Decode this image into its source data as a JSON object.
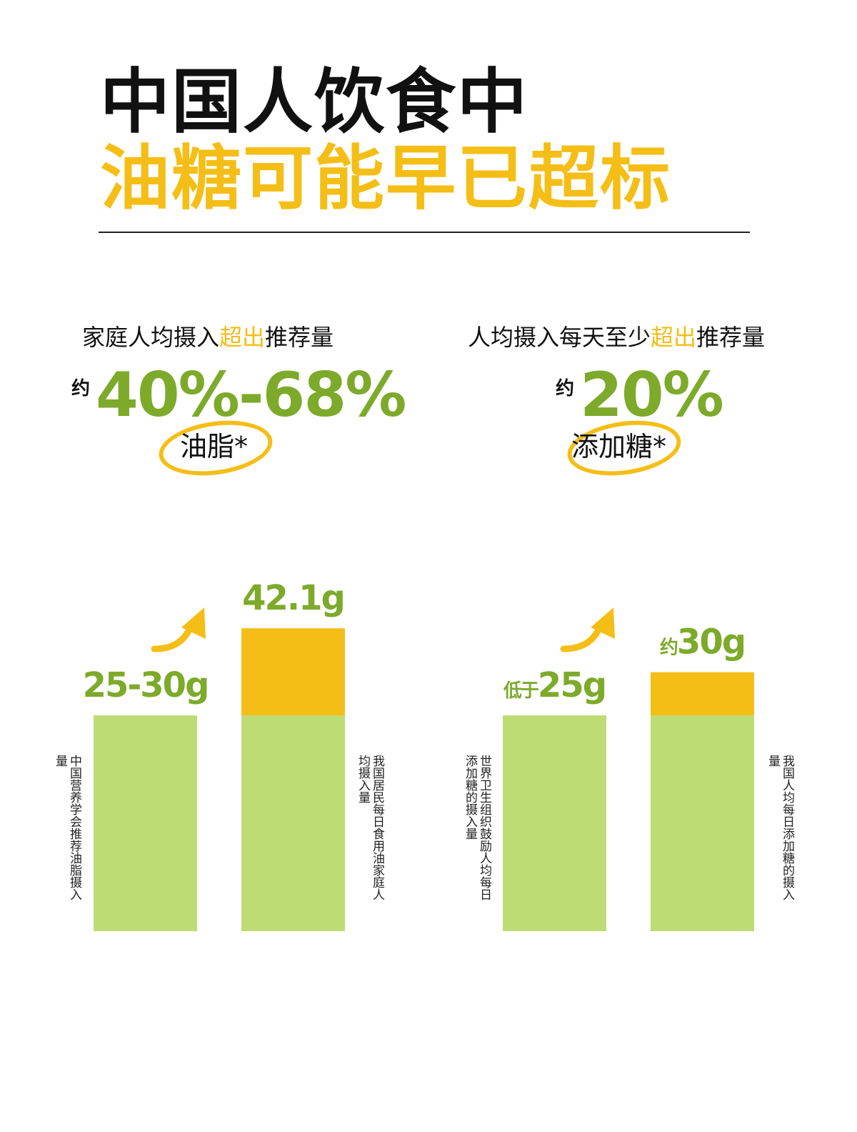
{
  "title": {
    "line1": "中国人饮食中",
    "line2": "油糖可能早已超标"
  },
  "colors": {
    "accent_yellow": "#F5BE17",
    "green_text": "#7DAA2A",
    "bar_green": "#BDDD74",
    "text_dark": "#111111"
  },
  "stats": {
    "left": {
      "head_before": "家庭人均摄入",
      "head_highlight": "超出",
      "head_after": "推荐量",
      "approx": "约",
      "value": "40%-68%",
      "subject": "油脂*"
    },
    "right": {
      "head_before": "人均摄入每天至少",
      "head_highlight": "超出",
      "head_after": "推荐量",
      "approx": "约",
      "value": "20%",
      "subject": "添加糖*"
    }
  },
  "chart_data": [
    {
      "type": "bar",
      "unit": "g",
      "categories": [
        "中国营养学会推荐油脂摄入量",
        "我国居民每日食用油家庭人均摄入量"
      ],
      "values": [
        30,
        42.1
      ],
      "recommended": 30,
      "value_labels": [
        "25-30g",
        "42.1g"
      ],
      "label_prefixes": [
        "",
        ""
      ],
      "label_values": [
        "25-30g",
        "42.1g"
      ]
    },
    {
      "type": "bar",
      "unit": "g",
      "categories": [
        "世界卫生组织鼓励人均每日添加糖的摄入量",
        "我国人均每日添加糖的摄入量"
      ],
      "values": [
        25,
        30
      ],
      "recommended": 25,
      "value_labels": [
        "低于25g",
        "约30g"
      ],
      "label_prefixes": [
        "低于",
        "约"
      ],
      "label_values": [
        "25g",
        "30g"
      ]
    }
  ]
}
